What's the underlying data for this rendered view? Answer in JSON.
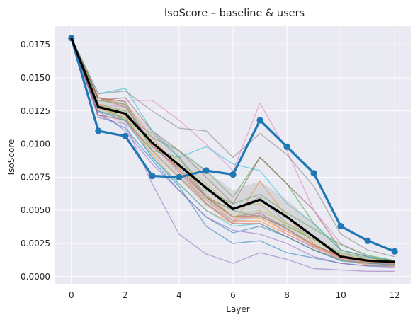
{
  "chart_data": {
    "type": "line",
    "title": "IsoScore – baseline & users",
    "xlabel": "Layer",
    "ylabel": "IsoScore",
    "x": [
      0,
      1,
      2,
      3,
      4,
      5,
      6,
      7,
      8,
      9,
      10,
      11,
      12
    ],
    "xlim": [
      -0.6,
      12.6
    ],
    "ylim": [
      -0.0006,
      0.0189
    ],
    "x_ticks": [
      0,
      2,
      4,
      6,
      8,
      10,
      12
    ],
    "y_ticks": [
      0.0,
      0.0025,
      0.005,
      0.0075,
      0.01,
      0.0125,
      0.015,
      0.0175
    ],
    "y_tick_labels": [
      "0.0000",
      "0.0025",
      "0.0050",
      "0.0075",
      "0.0100",
      "0.0125",
      "0.0150",
      "0.0175"
    ],
    "grid": true,
    "background": "#eaeaf2",
    "user_series": [
      {
        "color": "#1f77b4",
        "values": [
          0.018,
          0.0125,
          0.0118,
          0.009,
          0.0068,
          0.0038,
          0.0025,
          0.0027,
          0.0018,
          0.0014,
          0.001,
          0.0008,
          0.0008
        ]
      },
      {
        "color": "#ff7f0e",
        "values": [
          0.018,
          0.0127,
          0.012,
          0.0092,
          0.007,
          0.005,
          0.004,
          0.0072,
          0.0045,
          0.0025,
          0.0012,
          0.0009,
          0.0008
        ]
      },
      {
        "color": "#2ca02c",
        "values": [
          0.018,
          0.013,
          0.0118,
          0.0105,
          0.0095,
          0.008,
          0.006,
          0.009,
          0.007,
          0.004,
          0.002,
          0.0015,
          0.001
        ]
      },
      {
        "color": "#d62728",
        "values": [
          0.018,
          0.0135,
          0.0128,
          0.01,
          0.008,
          0.006,
          0.0045,
          0.0046,
          0.0036,
          0.0023,
          0.0016,
          0.0012,
          0.0009
        ]
      },
      {
        "color": "#9467bd",
        "values": [
          0.018,
          0.012,
          0.0115,
          0.007,
          0.0032,
          0.0017,
          0.001,
          0.0018,
          0.0013,
          0.0006,
          0.0005,
          0.0004,
          0.0004
        ]
      },
      {
        "color": "#8c564b",
        "values": [
          0.018,
          0.0133,
          0.0135,
          0.011,
          0.0095,
          0.0075,
          0.0055,
          0.009,
          0.007,
          0.005,
          0.002,
          0.0015,
          0.001
        ]
      },
      {
        "color": "#e377c2",
        "values": [
          0.018,
          0.0133,
          0.0133,
          0.0133,
          0.0118,
          0.01,
          0.008,
          0.0131,
          0.0095,
          0.005,
          0.0025,
          0.0015,
          0.0012
        ]
      },
      {
        "color": "#7f7f7f",
        "values": [
          0.018,
          0.0125,
          0.012,
          0.0108,
          0.009,
          0.006,
          0.005,
          0.006,
          0.004,
          0.003,
          0.0015,
          0.001,
          0.0009
        ]
      },
      {
        "color": "#bcbd22",
        "values": [
          0.018,
          0.0128,
          0.0125,
          0.0098,
          0.0088,
          0.007,
          0.0052,
          0.0055,
          0.0038,
          0.0028,
          0.0015,
          0.0012,
          0.001
        ]
      },
      {
        "color": "#17becf",
        "values": [
          0.018,
          0.0138,
          0.0142,
          0.011,
          0.009,
          0.0098,
          0.0085,
          0.008,
          0.0055,
          0.004,
          0.002,
          0.0015,
          0.0012
        ]
      },
      {
        "color": "#1f77b4",
        "values": [
          0.018,
          0.0122,
          0.0112,
          0.0088,
          0.0065,
          0.0045,
          0.0033,
          0.0038,
          0.003,
          0.002,
          0.0012,
          0.001,
          0.0009
        ]
      },
      {
        "color": "#ff7f0e",
        "values": [
          0.018,
          0.0135,
          0.013,
          0.0105,
          0.008,
          0.0055,
          0.0042,
          0.0042,
          0.0032,
          0.0022,
          0.0015,
          0.0011,
          0.001
        ]
      },
      {
        "color": "#2ca02c",
        "values": [
          0.018,
          0.013,
          0.0125,
          0.01,
          0.0085,
          0.006,
          0.005,
          0.0045,
          0.0038,
          0.0028,
          0.0018,
          0.0014,
          0.0012
        ]
      },
      {
        "color": "#d62728",
        "values": [
          0.018,
          0.0122,
          0.0118,
          0.0095,
          0.0075,
          0.0055,
          0.004,
          0.004,
          0.003,
          0.002,
          0.0013,
          0.001,
          0.0009
        ]
      },
      {
        "color": "#9467bd",
        "values": [
          0.018,
          0.0125,
          0.011,
          0.0085,
          0.0065,
          0.0045,
          0.0035,
          0.0032,
          0.0025,
          0.0015,
          0.001,
          0.0008,
          0.0007
        ]
      },
      {
        "color": "#8c564b",
        "values": [
          0.018,
          0.0135,
          0.0132,
          0.0098,
          0.0082,
          0.006,
          0.0045,
          0.0048,
          0.0036,
          0.0024,
          0.0015,
          0.0012,
          0.001
        ]
      },
      {
        "color": "#e377c2",
        "values": [
          0.018,
          0.013,
          0.0128,
          0.01,
          0.0078,
          0.0058,
          0.0042,
          0.0048,
          0.0032,
          0.0022,
          0.0014,
          0.0011,
          0.0009
        ]
      },
      {
        "color": "#7f7f7f",
        "values": [
          0.018,
          0.0138,
          0.014,
          0.0125,
          0.0112,
          0.011,
          0.009,
          0.0108,
          0.0092,
          0.0068,
          0.0032,
          0.002,
          0.0015
        ]
      },
      {
        "color": "#bcbd22",
        "values": [
          0.018,
          0.0128,
          0.012,
          0.0095,
          0.0075,
          0.0058,
          0.0045,
          0.005,
          0.004,
          0.0028,
          0.0017,
          0.0013,
          0.0011
        ]
      },
      {
        "color": "#17becf",
        "values": [
          0.018,
          0.0125,
          0.0118,
          0.009,
          0.007,
          0.005,
          0.0038,
          0.004,
          0.003,
          0.002,
          0.0012,
          0.001,
          0.0009
        ]
      },
      {
        "color": "#ff7f0e",
        "values": [
          0.018,
          0.013,
          0.0122,
          0.01,
          0.0085,
          0.0062,
          0.0045,
          0.0044,
          0.0034,
          0.0024,
          0.0014,
          0.0011,
          0.001
        ]
      },
      {
        "color": "#2ca02c",
        "values": [
          0.018,
          0.0133,
          0.013,
          0.0095,
          0.009,
          0.0065,
          0.0055,
          0.0062,
          0.0048,
          0.0036,
          0.0024,
          0.0016,
          0.0012
        ]
      }
    ],
    "band": {
      "color": "#b0b0b0",
      "upper": [
        0.018,
        0.0133,
        0.0132,
        0.011,
        0.0095,
        0.008,
        0.0065,
        0.0072,
        0.0058,
        0.004,
        0.002,
        0.0015,
        0.0012
      ],
      "lower": [
        0.018,
        0.0124,
        0.0115,
        0.0092,
        0.0073,
        0.0053,
        0.004,
        0.0045,
        0.0034,
        0.0021,
        0.0012,
        0.0009,
        0.0008
      ]
    },
    "baseline": {
      "color": "#1f77b4",
      "values": [
        0.018,
        0.011,
        0.0106,
        0.0076,
        0.0075,
        0.008,
        0.0077,
        0.0118,
        0.0098,
        0.0078,
        0.0038,
        0.0027,
        0.0019
      ]
    },
    "mean": {
      "color": "#000000",
      "values": [
        0.018,
        0.0128,
        0.0123,
        0.0101,
        0.0084,
        0.0067,
        0.0051,
        0.0058,
        0.0045,
        0.003,
        0.0015,
        0.0012,
        0.0011
      ]
    }
  }
}
